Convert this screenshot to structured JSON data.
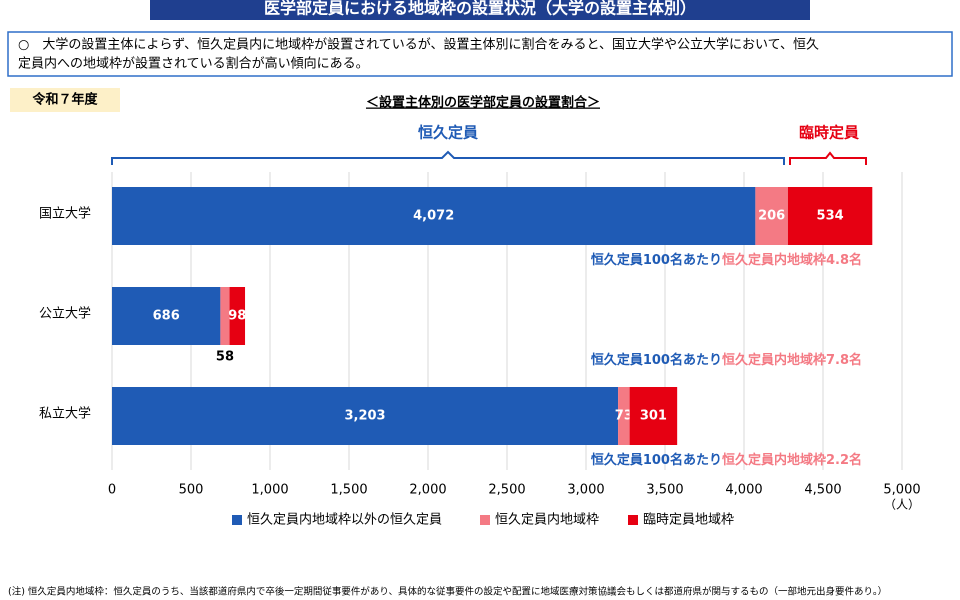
{
  "header": {
    "title": "医学部定員における地域枠の設置状況（大学の設置主体別）"
  },
  "summary": {
    "lines": [
      "○　大学の設置主体によらず、恒久定員内に地域枠が設置されているが、設置主体別に割合をみると、国立大学や公立大学において、恒久",
      "定員内への地域枠が設置されている割合が高い傾向にある。"
    ]
  },
  "year_label": "令和７年度",
  "chart_data": {
    "type": "stacked-bar-horizontal",
    "title": "＜設置主体別の医学部定員の設置割合＞",
    "categories": [
      "国立大学",
      "公立大学",
      "私立大学"
    ],
    "series": [
      {
        "name": "恒久定員内地域枠以外の恒久定員",
        "color": "#1f5bb5",
        "values": [
          4072,
          686,
          3203
        ],
        "value_labels": [
          "4,072",
          "686",
          "3,203"
        ]
      },
      {
        "name": "恒久定員内地域枠",
        "color": "#f47a84",
        "values": [
          206,
          58,
          73
        ]
      },
      {
        "name": "臨時定員地域枠",
        "color": "#e60012",
        "values": [
          534,
          98,
          301
        ]
      }
    ],
    "brackets": [
      {
        "label": "恒久定員",
        "color": "#1f5bb5"
      },
      {
        "label": "臨時定員",
        "color": "#e60012"
      }
    ],
    "row_notes": [
      {
        "lead": "恒久定員100名あたり",
        "highlight": "恒久定員内地域枠4.8名"
      },
      {
        "lead": "恒久定員100名あたり",
        "highlight": "恒久定員内地域枠7.8名"
      },
      {
        "lead": "恒久定員100名あたり",
        "highlight": "恒久定員内地域枠2.2名"
      }
    ],
    "xlim": [
      0,
      5000
    ],
    "xticks": [
      0,
      500,
      {
        "value": 1000,
        "label": "1,000"
      },
      {
        "value": 1500,
        "label": "1,500"
      },
      {
        "value": 2000,
        "label": "2,000"
      },
      {
        "value": 2500,
        "label": "2,500"
      },
      {
        "value": 3000,
        "label": "3,000"
      },
      {
        "value": 3500,
        "label": "3,500"
      },
      {
        "value": 4000,
        "label": "4,000"
      },
      {
        "value": 4500,
        "label": "4,500"
      },
      {
        "value": 5000,
        "label": "5,000"
      }
    ],
    "x_unit": "（人）",
    "grid": true
  },
  "footnote": "(注) 恒久定員内地域枠：恒久定員のうち、当該都道府県内で卒後一定期間従事要件があり、具体的な従事要件の設定や配置に地域医療対策協議会もしくは都道府県が関与するもの（一部地元出身要件あり。）"
}
